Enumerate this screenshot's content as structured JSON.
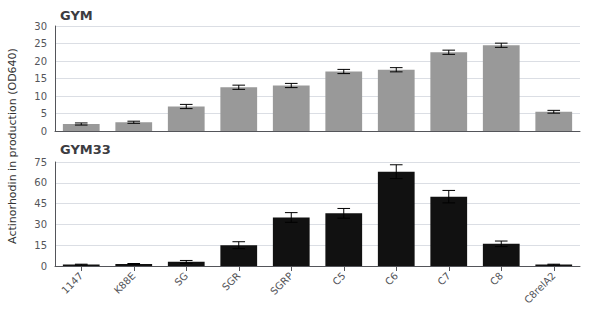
{
  "chart_data": [
    {
      "type": "bar",
      "title": "GYM",
      "ylabel": "Actinorhodin in production (OD640)",
      "categories": [
        "1147",
        "K88E",
        "SG",
        "SGR",
        "SGRP",
        "C5",
        "C6",
        "C7",
        "C8",
        "C8relA2"
      ],
      "values": [
        2.0,
        2.5,
        7.0,
        12.5,
        13.0,
        17.0,
        17.5,
        22.5,
        24.5,
        5.5
      ],
      "errors": [
        0.3,
        0.3,
        0.6,
        0.6,
        0.6,
        0.6,
        0.6,
        0.6,
        0.6,
        0.4
      ],
      "color": "#999999",
      "ylim": [
        0,
        30
      ],
      "yticks": [
        0,
        5,
        10,
        15,
        20,
        25,
        30
      ],
      "grid": true,
      "tick_labels": "y"
    },
    {
      "type": "bar",
      "title": "GYM33",
      "categories": [
        "1147",
        "K88E",
        "SG",
        "SGR",
        "SGRP",
        "C5",
        "C6",
        "C7",
        "C8",
        "C8relA2"
      ],
      "values": [
        1.0,
        1.5,
        3.0,
        15.0,
        35.0,
        38.0,
        68.0,
        50.0,
        16.0,
        1.0
      ],
      "errors": [
        0.3,
        0.3,
        1.0,
        2.5,
        3.5,
        3.5,
        5.0,
        4.5,
        2.0,
        0.3
      ],
      "color": "#111111",
      "ylim": [
        0,
        75
      ],
      "yticks": [
        0,
        15,
        30,
        45,
        60,
        75
      ],
      "grid": true
    }
  ]
}
